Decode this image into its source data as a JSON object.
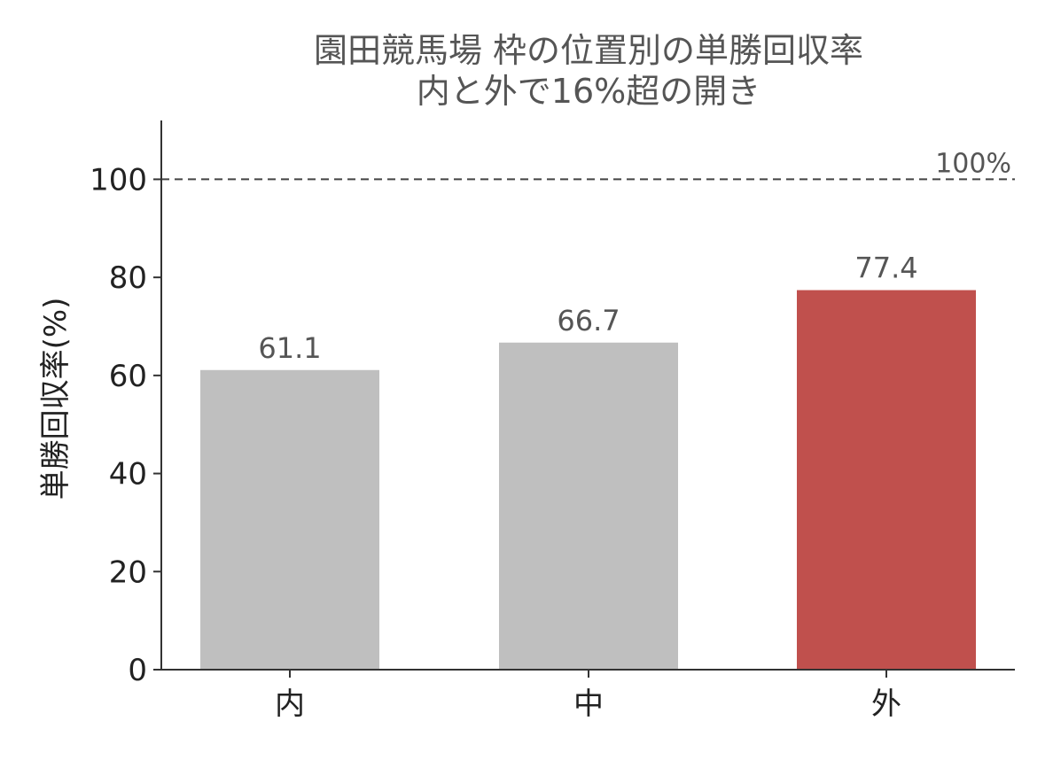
{
  "chart_data": {
    "type": "bar",
    "title_lines": [
      "園田競馬場 枠の位置別の単勝回収率",
      "内と外で16%超の開き"
    ],
    "xlabel": "",
    "ylabel": "単勝回収率(%)",
    "categories": [
      "内",
      "中",
      "外"
    ],
    "values": [
      61.1,
      66.7,
      77.4
    ],
    "value_labels": [
      "61.1",
      "66.7",
      "77.4"
    ],
    "bar_colors": [
      "#bfbfbf",
      "#bfbfbf",
      "#c0504d"
    ],
    "ylim": [
      0,
      112
    ],
    "yticks": [
      0,
      20,
      40,
      60,
      80,
      100
    ],
    "reference_line": {
      "value": 100,
      "label": "100%",
      "style": "dashed",
      "color": "#444444"
    },
    "grid": false,
    "legend": "none"
  }
}
